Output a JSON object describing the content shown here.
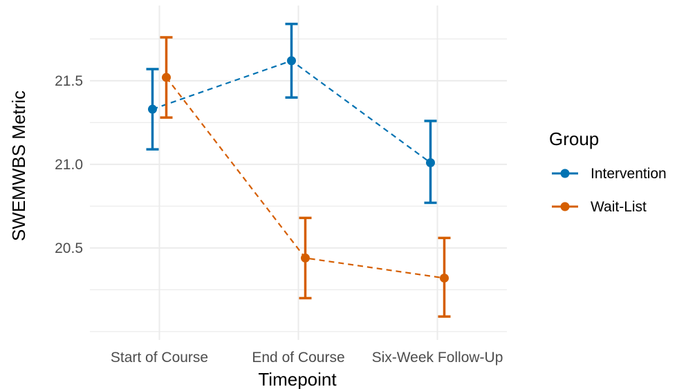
{
  "chart_data": {
    "type": "line",
    "xlabel": "Timepoint",
    "ylabel": "SWEMWBS Metric",
    "categories": [
      "Start of Course",
      "End of Course",
      "Six-Week Follow-Up"
    ],
    "ylim": [
      19.95,
      21.95
    ],
    "yticks": [
      20.5,
      21.0,
      21.5
    ],
    "ytick_labels": [
      "20.5",
      "21.0",
      "21.5"
    ],
    "grid": true,
    "legend": {
      "title": "Group",
      "position": "right"
    },
    "series": [
      {
        "name": "Intervention",
        "color": "#0072B2",
        "line_style": "dashed",
        "values": [
          21.33,
          21.62,
          21.01
        ],
        "lower": [
          21.09,
          21.4,
          20.77
        ],
        "upper": [
          21.57,
          21.84,
          21.26
        ]
      },
      {
        "name": "Wait-List",
        "color": "#D55E00",
        "line_style": "dashed",
        "values": [
          21.52,
          20.44,
          20.32
        ],
        "lower": [
          21.28,
          20.2,
          20.09
        ],
        "upper": [
          21.76,
          20.68,
          20.56
        ]
      }
    ]
  }
}
